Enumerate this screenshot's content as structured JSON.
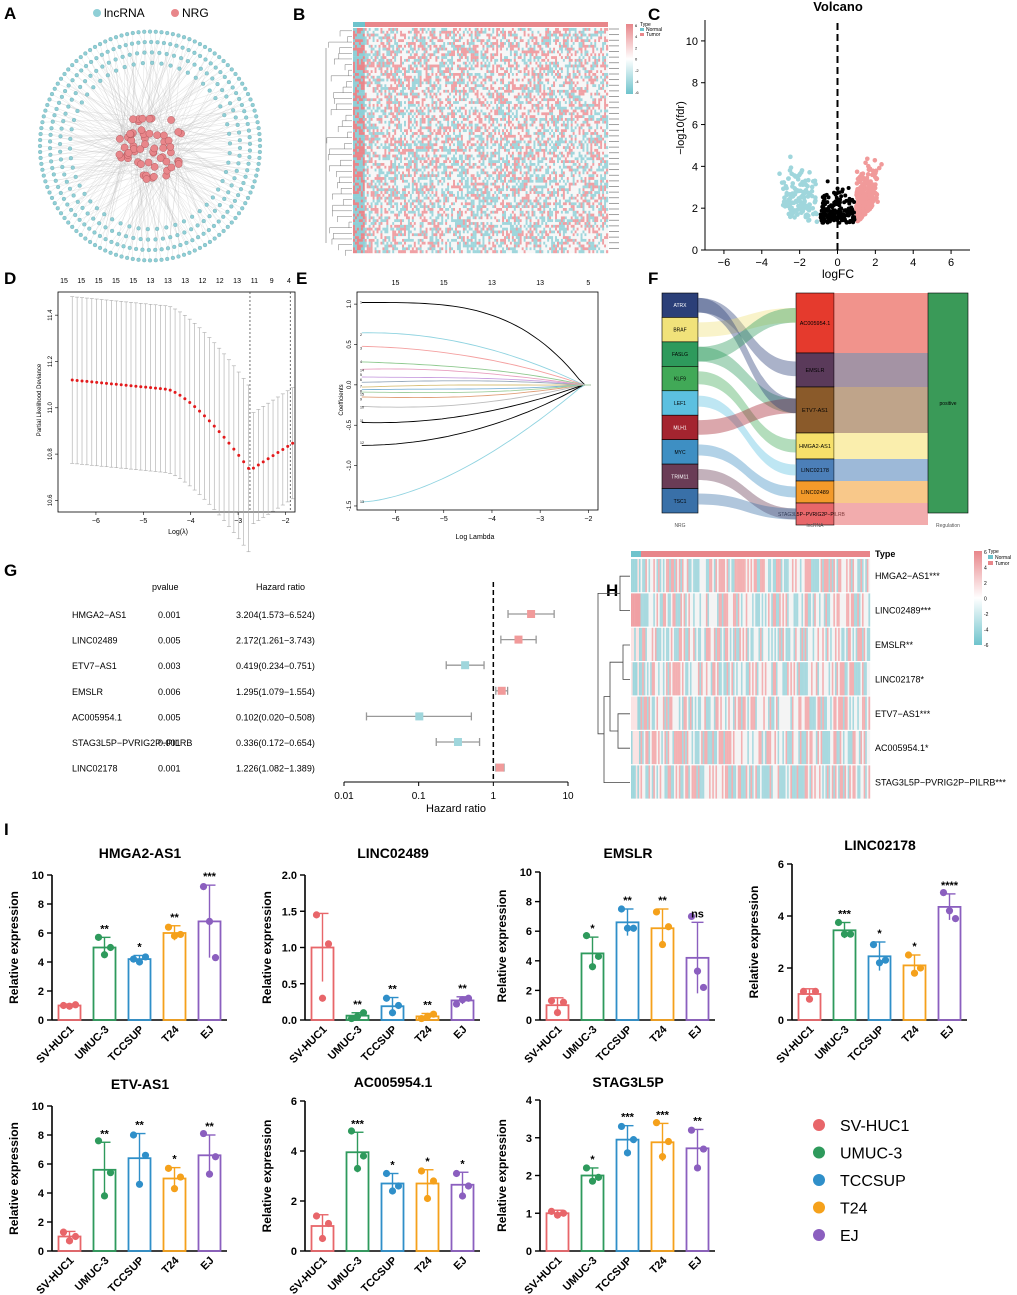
{
  "colors": {
    "lncrna": "#8fcfd6",
    "nrg": "#e8868a",
    "normal": "#6ec3cc",
    "tumor": "#e8868a",
    "down": "#9fd6dc",
    "up": "#f19a9a",
    "ns": "#000000",
    "lasso_red": "#e31a1c",
    "bar_colors": [
      "#e8666a",
      "#2e9a5c",
      "#2f8fc9",
      "#f5a11b",
      "#8b5fbf"
    ]
  },
  "panel_letters": [
    "A",
    "B",
    "C",
    "D",
    "E",
    "F",
    "G",
    "H",
    "I"
  ],
  "panelA": {
    "legend": [
      "lncRNA",
      "NRG"
    ]
  },
  "panelB": {
    "legend_title": "Type",
    "legend_items": [
      "Normal",
      "Tumor"
    ],
    "scale_labels": [
      "6",
      "4",
      "2",
      "0",
      "-2",
      "-4",
      "-6"
    ]
  },
  "chart_data": [
    {
      "id": "C",
      "type": "scatter",
      "title": "Volcano",
      "xlabel": "logFC",
      "ylabel": "−log10(fdr)",
      "xlim": [
        -7,
        7
      ],
      "ylim": [
        0,
        11
      ],
      "xticks": [
        -6,
        -4,
        -2,
        0,
        2,
        4,
        6
      ],
      "yticks": [
        0,
        2,
        4,
        6,
        8,
        10
      ],
      "cutoff_x": 0
    },
    {
      "id": "D",
      "type": "line",
      "xlabel": "Log(λ)",
      "ylabel": "Partial Likelihood Deviance",
      "xlim": [
        -6.8,
        -1.8
      ],
      "ylim": [
        10.55,
        11.5
      ],
      "xticks": [
        -6,
        -5,
        -4,
        -3,
        -2
      ],
      "yticks": [
        10.6,
        10.8,
        11.0,
        11.2,
        11.4
      ],
      "top_labels": [
        "15",
        "15",
        "15",
        "15",
        "15",
        "13",
        "13",
        "13",
        "12",
        "12",
        "13",
        "11",
        "9",
        "4"
      ],
      "vlines": [
        -2.75,
        -1.9
      ]
    },
    {
      "id": "E",
      "type": "line",
      "xlabel": "Log Lambda",
      "ylabel": "Coefficients",
      "xlim": [
        -6.8,
        -1.8
      ],
      "ylim": [
        -1.55,
        1.15
      ],
      "xticks": [
        -6,
        -5,
        -4,
        -3,
        -2
      ],
      "yticks": [
        1.0,
        0.5,
        0.0,
        -0.5,
        -1.0,
        -1.5
      ],
      "top_labels": [
        "15",
        "15",
        "13",
        "13",
        "5"
      ]
    },
    {
      "id": "F",
      "type": "sankey",
      "nrg": [
        "ATRX",
        "BRAF",
        "FASLG",
        "KLF9",
        "LEF1",
        "MLH1",
        "MYC",
        "TRIM11",
        "TSC1"
      ],
      "lncrna": [
        "AC005954.1",
        "EMSLR",
        "ETV7-AS1",
        "HMGA2-AS1",
        "LINC02178",
        "LINC02489",
        "STAG3L5P−PVRIG2P−PILRB"
      ],
      "regulation": [
        "positive"
      ],
      "axis_labels": [
        "NRG",
        "lncRNA",
        "Regulation"
      ]
    },
    {
      "id": "G",
      "type": "forest",
      "headers": [
        "pvalue",
        "Hazard ratio"
      ],
      "genes": [
        "HMGA2−AS1",
        "LINC02489",
        "ETV7−AS1",
        "EMSLR",
        "AC005954.1",
        "STAG3L5P−PVRIG2P−PILRB",
        "LINC02178"
      ],
      "pvalues": [
        "0.001",
        "0.005",
        "0.003",
        "0.006",
        "0.005",
        "0.001",
        "0.001"
      ],
      "hr_text": [
        "3.204(1.573−6.524)",
        "2.172(1.261−3.743)",
        "0.419(0.234−0.751)",
        "1.295(1.079−1.554)",
        "0.102(0.020−0.508)",
        "0.336(0.172−0.654)",
        "1.226(1.082−1.389)"
      ],
      "hr": [
        3.204,
        2.172,
        0.419,
        1.295,
        0.102,
        0.336,
        1.226
      ],
      "lo": [
        1.573,
        1.261,
        0.234,
        1.079,
        0.02,
        0.172,
        1.082
      ],
      "hi": [
        6.524,
        3.743,
        0.751,
        1.554,
        0.508,
        0.654,
        1.389
      ],
      "xlabel": "Hazard ratio",
      "xticks": [
        "0.01",
        "0.1",
        "1",
        "10"
      ]
    },
    {
      "id": "H",
      "type": "heatmap",
      "rows": [
        "HMGA2−AS1***",
        "LINC02489***",
        "EMSLR**",
        "LINC02178*",
        "ETV7−AS1***",
        "AC005954.1*",
        "STAG3L5P−PVRIG2P−PILRB***"
      ],
      "legend_title": "Type",
      "legend_items": [
        "Normal",
        "Tumor"
      ],
      "scale_labels": [
        "6",
        "4",
        "2",
        "0",
        "-2",
        "-4",
        "-6"
      ]
    },
    {
      "id": "I",
      "type": "bar",
      "categories": [
        "SV-HUC1",
        "UMUC-3",
        "TCCSUP",
        "T24",
        "EJ"
      ],
      "ylabel": "Relative expression",
      "legend": [
        "SV-HUC1",
        "UMUC-3",
        "TCCSUP",
        "T24",
        "EJ"
      ],
      "plots": [
        {
          "title": "HMGA2-AS1",
          "ymax": 10,
          "yticks": [
            0,
            2,
            4,
            6,
            8,
            10
          ],
          "values": [
            1.0,
            5.0,
            4.2,
            6.0,
            6.8
          ],
          "err": [
            0.1,
            0.7,
            0.25,
            0.5,
            2.5
          ],
          "sig": [
            "",
            "**",
            "*",
            "**",
            "***"
          ],
          "points": [
            [
              1.0,
              0.95,
              1.05
            ],
            [
              5.7,
              4.5,
              5.0
            ],
            [
              4.2,
              4.0,
              4.35
            ],
            [
              6.4,
              5.8,
              5.9
            ],
            [
              9.2,
              6.8,
              4.3
            ]
          ]
        },
        {
          "title": "LINC02489",
          "ymax": 2.0,
          "yticks": [
            0.0,
            0.5,
            1.0,
            1.5,
            2.0
          ],
          "values": [
            1.0,
            0.06,
            0.19,
            0.05,
            0.27
          ],
          "err": [
            0.47,
            0.04,
            0.12,
            0.04,
            0.05
          ],
          "sig": [
            "",
            "**",
            "**",
            "**",
            "**"
          ],
          "points": [
            [
              1.45,
              0.3,
              1.05
            ],
            [
              0.02,
              0.05,
              0.1
            ],
            [
              0.3,
              0.1,
              0.2
            ],
            [
              0.02,
              0.05,
              0.08
            ],
            [
              0.22,
              0.28,
              0.3
            ]
          ]
        },
        {
          "title": "EMSLR",
          "ymax": 10,
          "yticks": [
            0,
            2,
            4,
            6,
            8,
            10
          ],
          "values": [
            1.0,
            4.5,
            6.6,
            6.2,
            4.2
          ],
          "err": [
            0.5,
            1.1,
            0.9,
            1.3,
            2.4
          ],
          "sig": [
            "",
            "*",
            "**",
            "**",
            "ns"
          ],
          "points": [
            [
              1.3,
              0.5,
              1.2
            ],
            [
              5.7,
              3.6,
              4.3
            ],
            [
              7.5,
              6.2,
              6.2
            ],
            [
              7.3,
              5.1,
              6.3
            ],
            [
              7.0,
              3.3,
              2.2
            ]
          ]
        },
        {
          "title": "LINC02178",
          "ymax": 6,
          "yticks": [
            0,
            2,
            4,
            6
          ],
          "values": [
            1.0,
            3.45,
            2.45,
            2.1,
            4.35
          ],
          "err": [
            0.2,
            0.3,
            0.55,
            0.4,
            0.5
          ],
          "sig": [
            "",
            "***",
            "*",
            "*",
            "****"
          ],
          "points": [
            [
              1.1,
              0.8,
              1.1
            ],
            [
              3.75,
              3.3,
              3.3
            ],
            [
              2.9,
              2.2,
              2.3
            ],
            [
              2.5,
              1.8,
              2.0
            ],
            [
              4.9,
              4.2,
              3.9
            ]
          ]
        },
        {
          "title": "ETV-AS1",
          "ymax": 10,
          "yticks": [
            0,
            2,
            4,
            6,
            8,
            10
          ],
          "values": [
            1.0,
            5.6,
            6.4,
            5.0,
            6.6
          ],
          "err": [
            0.35,
            1.9,
            1.7,
            0.75,
            1.4
          ],
          "sig": [
            "",
            "**",
            "**",
            "*",
            "**"
          ],
          "points": [
            [
              1.3,
              0.7,
              1.0
            ],
            [
              7.6,
              3.8,
              5.4
            ],
            [
              8.0,
              4.6,
              6.6
            ],
            [
              5.7,
              4.3,
              5.1
            ],
            [
              8.1,
              5.3,
              6.5
            ]
          ]
        },
        {
          "title": "AC005954.1",
          "ymax": 6,
          "yticks": [
            0,
            2,
            4,
            6
          ],
          "values": [
            1.0,
            3.95,
            2.7,
            2.7,
            2.65
          ],
          "err": [
            0.45,
            0.8,
            0.4,
            0.55,
            0.5
          ],
          "sig": [
            "",
            "***",
            "*",
            "*",
            "*"
          ],
          "points": [
            [
              1.4,
              0.5,
              1.1
            ],
            [
              4.8,
              3.3,
              3.8
            ],
            [
              3.1,
              2.4,
              2.6
            ],
            [
              3.2,
              2.1,
              2.8
            ],
            [
              3.1,
              2.2,
              2.6
            ]
          ]
        },
        {
          "title": "STAG3L5P",
          "ymax": 4,
          "yticks": [
            0,
            1,
            2,
            3,
            4
          ],
          "values": [
            1.0,
            2.0,
            2.95,
            2.88,
            2.72
          ],
          "err": [
            0.08,
            0.2,
            0.37,
            0.5,
            0.5
          ],
          "sig": [
            "",
            "*",
            "***",
            "***",
            "**"
          ],
          "points": [
            [
              1.05,
              0.95,
              1.0
            ],
            [
              2.2,
              1.85,
              1.95
            ],
            [
              3.3,
              2.6,
              2.95
            ],
            [
              3.4,
              2.5,
              2.9
            ],
            [
              3.2,
              2.2,
              2.7
            ]
          ]
        }
      ]
    }
  ]
}
